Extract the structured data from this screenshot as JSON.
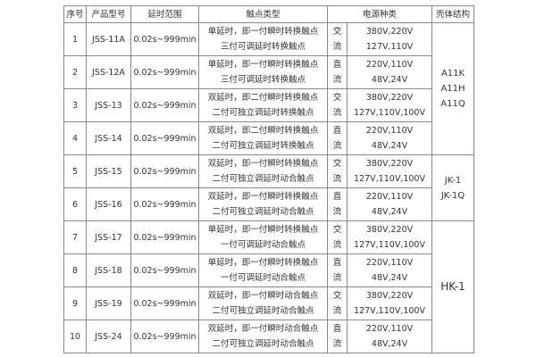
{
  "headers": [
    "序号",
    "产品型号",
    "延时范围",
    "触点类型",
    "电源种类",
    "壳体结构"
  ],
  "rows": [
    {
      "no": "1",
      "model": "JSS-11A",
      "range": "0.02s~999min",
      "contact": [
        "单延时，即一付瞬时转换触点",
        "三付可调延时转换触点"
      ],
      "ptype": [
        "交",
        "流"
      ],
      "voltage": [
        "380V,220V",
        "127V,110V"
      ]
    },
    {
      "no": "2",
      "model": "JSS-12A",
      "range": "0.02s~999min",
      "contact": [
        "单延时，即一付瞬时转换触点",
        "三付可调延时转换触点"
      ],
      "ptype": [
        "直",
        "流"
      ],
      "voltage": [
        "220V,110V",
        "48V,24V"
      ]
    },
    {
      "no": "3",
      "model": "JSS-13",
      "range": "0.02s~999min",
      "contact": [
        "双延时，即二付瞬时转换触点",
        "二付可独立调延时转换触点"
      ],
      "ptype": [
        "交",
        "流"
      ],
      "voltage": [
        "380V,220V",
        "127V,110V,100V"
      ]
    },
    {
      "no": "4",
      "model": "JSS-14",
      "range": "0.02s~999min",
      "contact": [
        "双延时，即二付瞬时转换触点",
        "二付可独立调延时转换触点"
      ],
      "ptype": [
        "直",
        "流"
      ],
      "voltage": [
        "220V,110V",
        "48V,24V"
      ]
    },
    {
      "no": "5",
      "model": "JSS-15",
      "range": "0.02s~999min",
      "contact": [
        "双延时，即一付瞬时转换触点",
        "二付可独立调延时动合触点"
      ],
      "ptype": [
        "交",
        "流"
      ],
      "voltage": [
        "380V,220V",
        "127V,110V,100V"
      ]
    },
    {
      "no": "6",
      "model": "JSS-16",
      "range": "0.02s~999min",
      "contact": [
        "双延时，即一付瞬时转换触点",
        "二付可独立调延时动合触点"
      ],
      "ptype": [
        "直",
        "流"
      ],
      "voltage": [
        "220V,110V",
        "48V,24V"
      ]
    },
    {
      "no": "7",
      "model": "JSS-17",
      "range": "0.02s~999min",
      "contact": [
        "单延时，即一付瞬时转换触点",
        "一付可调延时动合触点"
      ],
      "ptype": [
        "交",
        "流"
      ],
      "voltage": [
        "380V,220V",
        "127V,110V,100V"
      ]
    },
    {
      "no": "8",
      "model": "JSS-18",
      "range": "0.02s~999min",
      "contact": [
        "单延时，即一付瞬时转换触点",
        "一付可调延时动合触点"
      ],
      "ptype": [
        "直",
        "流"
      ],
      "voltage": [
        "220V,110V",
        "48V,24V"
      ]
    },
    {
      "no": "9",
      "model": "JSS-19",
      "range": "0.02s~999min",
      "contact": [
        "双延时，即一付瞬时动合触点",
        "二付可独立调延时动合触点"
      ],
      "ptype": [
        "交",
        "流"
      ],
      "voltage": [
        "380V,220V",
        "127V,110V,100V"
      ]
    },
    {
      "no": "10",
      "model": "JSS-24",
      "range": "0.02s~999min",
      "contact": [
        "双延时，即一付瞬时动合触点",
        "二付可独立调延时动合触点"
      ],
      "ptype": [
        "直",
        "流"
      ],
      "voltage": [
        "220V,110V",
        "48V,24V"
      ]
    }
  ],
  "shells": [
    [
      "A11K",
      "A11H",
      "A11Q"
    ],
    [
      "JK-1",
      "JK-1Q"
    ],
    [
      "HK-1"
    ]
  ]
}
